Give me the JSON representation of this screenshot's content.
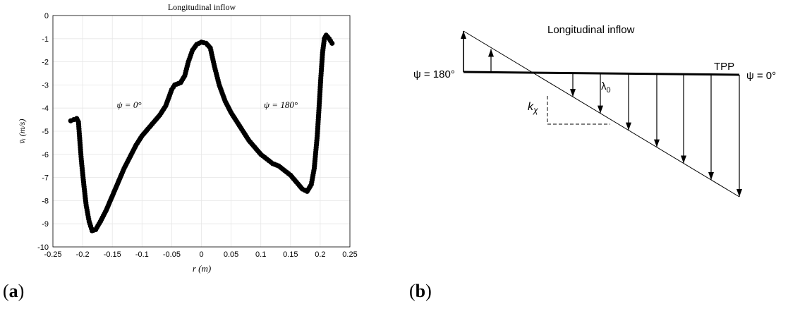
{
  "panels": {
    "a_label": "a",
    "b_label": "b"
  },
  "chart_data": [
    {
      "type": "scatter",
      "title": "Longitudinal inflow",
      "xlabel": "r (m)",
      "ylabel": "v̄ᵢ (m/s)",
      "xlim": [
        -0.25,
        0.25
      ],
      "ylim": [
        -10,
        0
      ],
      "xticks": [
        -0.25,
        -0.2,
        -0.15,
        -0.1,
        -0.05,
        0,
        0.05,
        0.1,
        0.15,
        0.2,
        0.25
      ],
      "xtick_labels": [
        "-0.25",
        "-0.2",
        "-0.15",
        "-0.1",
        "-0.05",
        "0",
        "0.05",
        "0.1",
        "0.15",
        "0.2",
        "0.25"
      ],
      "yticks": [
        0,
        -1,
        -2,
        -3,
        -4,
        -5,
        -6,
        -7,
        -8,
        -9,
        -10
      ],
      "ytick_labels": [
        "0",
        "-1",
        "-2",
        "-3",
        "-4",
        "-5",
        "-6",
        "-7",
        "-8",
        "-9",
        "-10"
      ],
      "grid": true,
      "annotations": [
        "ψ = 0°",
        "ψ = 180°"
      ],
      "series": [
        {
          "marker": "filled-circle",
          "color": "#000000",
          "points": [
            [
              -0.22,
              -4.55
            ],
            [
              -0.215,
              -4.5
            ],
            [
              -0.21,
              -4.45
            ],
            [
              -0.207,
              -4.6
            ],
            [
              -0.205,
              -5.3
            ],
            [
              -0.202,
              -6.3
            ],
            [
              -0.198,
              -7.3
            ],
            [
              -0.194,
              -8.2
            ],
            [
              -0.189,
              -8.9
            ],
            [
              -0.184,
              -9.3
            ],
            [
              -0.178,
              -9.25
            ],
            [
              -0.17,
              -8.9
            ],
            [
              -0.16,
              -8.4
            ],
            [
              -0.15,
              -7.8
            ],
            [
              -0.14,
              -7.2
            ],
            [
              -0.13,
              -6.6
            ],
            [
              -0.12,
              -6.1
            ],
            [
              -0.11,
              -5.6
            ],
            [
              -0.1,
              -5.2
            ],
            [
              -0.09,
              -4.9
            ],
            [
              -0.08,
              -4.6
            ],
            [
              -0.07,
              -4.3
            ],
            [
              -0.06,
              -3.9
            ],
            [
              -0.05,
              -3.2
            ],
            [
              -0.045,
              -3.0
            ],
            [
              -0.035,
              -2.9
            ],
            [
              -0.028,
              -2.6
            ],
            [
              -0.022,
              -2.0
            ],
            [
              -0.015,
              -1.5
            ],
            [
              -0.008,
              -1.25
            ],
            [
              0.0,
              -1.15
            ],
            [
              0.008,
              -1.2
            ],
            [
              0.015,
              -1.4
            ],
            [
              0.022,
              -2.2
            ],
            [
              0.03,
              -3.0
            ],
            [
              0.04,
              -3.7
            ],
            [
              0.05,
              -4.2
            ],
            [
              0.06,
              -4.6
            ],
            [
              0.07,
              -5.0
            ],
            [
              0.08,
              -5.4
            ],
            [
              0.09,
              -5.7
            ],
            [
              0.1,
              -6.0
            ],
            [
              0.11,
              -6.2
            ],
            [
              0.12,
              -6.4
            ],
            [
              0.13,
              -6.5
            ],
            [
              0.14,
              -6.7
            ],
            [
              0.15,
              -6.9
            ],
            [
              0.16,
              -7.2
            ],
            [
              0.17,
              -7.5
            ],
            [
              0.178,
              -7.6
            ],
            [
              0.185,
              -7.3
            ],
            [
              0.19,
              -6.6
            ],
            [
              0.195,
              -5.2
            ],
            [
              0.198,
              -4.0
            ],
            [
              0.201,
              -2.7
            ],
            [
              0.204,
              -1.6
            ],
            [
              0.207,
              -1.0
            ],
            [
              0.21,
              -0.85
            ],
            [
              0.215,
              -1.0
            ],
            [
              0.22,
              -1.2
            ]
          ]
        }
      ]
    },
    {
      "type": "diagram",
      "title": "Longitudinal inflow",
      "left_label": "ψ = 180°",
      "right_label": "ψ = 0°",
      "plane_label": "TPP",
      "lambda_label": "λ",
      "lambda_sub": "0",
      "k_label": "k",
      "k_sub": "χ"
    }
  ]
}
